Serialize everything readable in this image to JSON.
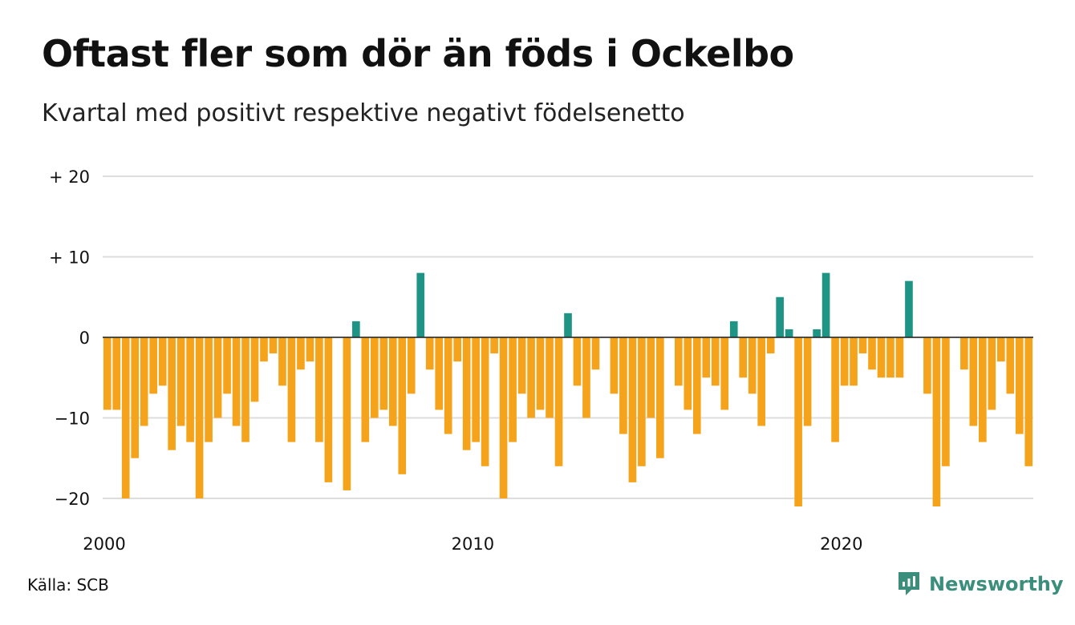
{
  "title": "Oftast fler som dör än föds i Ockelbo",
  "subtitle": "Kvartal med positivt respektive negativt födelsenetto",
  "source": "Källa: SCB",
  "brand": {
    "name": "Newsworthy",
    "icon": "newsworthy-logo-icon"
  },
  "colors": {
    "positive": "#1e9485",
    "negative": "#f5a31a",
    "grid": "#dddddd",
    "brand": "#3a8e7b"
  },
  "chart_data": {
    "type": "bar",
    "start_label": "2000Q1",
    "x_tick_labels": [
      "2000",
      "2010",
      "2020"
    ],
    "x_tick_indices": [
      0,
      40,
      80
    ],
    "y_tick_values": [
      20,
      10,
      0,
      -10,
      -20
    ],
    "y_tick_labels": [
      "+ 20",
      "+ 10",
      "0",
      "−10",
      "−20"
    ],
    "ylim": [
      -23,
      21
    ],
    "grid": true,
    "values": [
      -9,
      -9,
      -20,
      -15,
      -11,
      -7,
      -6,
      -14,
      -11,
      -13,
      -20,
      -13,
      -10,
      -7,
      -11,
      -13,
      -8,
      -3,
      -2,
      -6,
      -13,
      -4,
      -3,
      -13,
      -18,
      0,
      -19,
      2,
      -13,
      -10,
      -9,
      -11,
      -17,
      -7,
      8,
      -4,
      -9,
      -12,
      -3,
      -14,
      -13,
      -16,
      -2,
      -20,
      -13,
      -7,
      -10,
      -9,
      -10,
      -16,
      3,
      -6,
      -10,
      -4,
      0,
      -7,
      -12,
      -18,
      -16,
      -10,
      -15,
      0,
      -6,
      -9,
      -12,
      -5,
      -6,
      -9,
      2,
      -5,
      -7,
      -11,
      -2,
      5,
      1,
      -21,
      -11,
      1,
      8,
      -13,
      -6,
      -6,
      -2,
      -4,
      -5,
      -5,
      -5,
      7,
      0,
      -7,
      -21,
      -16,
      0,
      -4,
      -11,
      -13,
      -9,
      -3,
      -7,
      -12,
      -16
    ]
  }
}
